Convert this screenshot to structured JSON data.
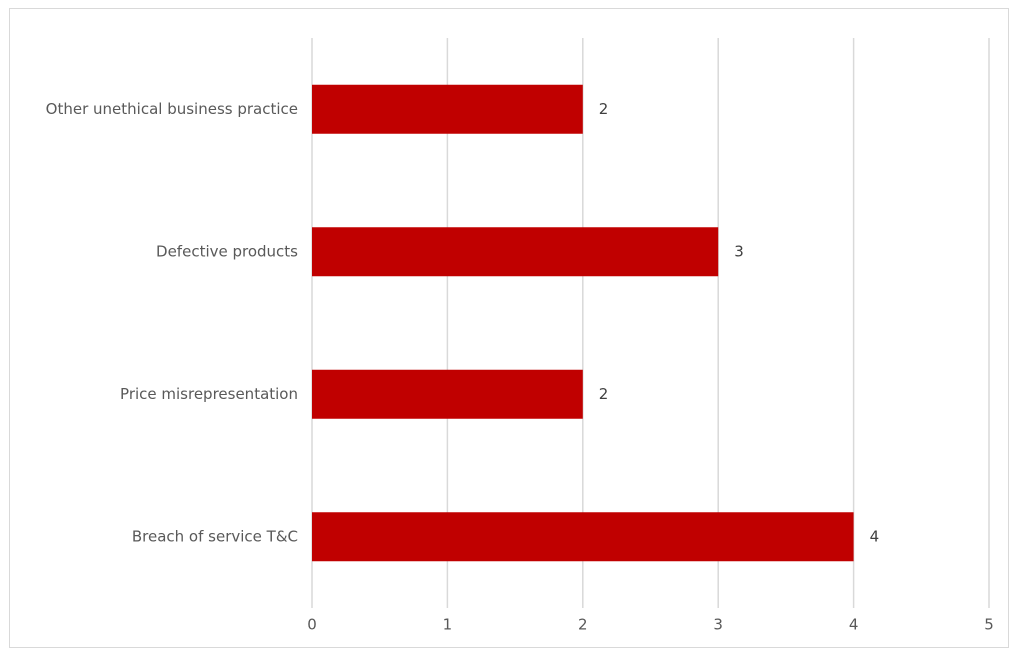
{
  "chart_data": {
    "type": "bar",
    "orientation": "horizontal",
    "categories": [
      "Other unethical business practice",
      "Defective products",
      "Price misrepresentation",
      "Breach of service T&C"
    ],
    "values": [
      2,
      3,
      2,
      4
    ],
    "data_labels": [
      "2",
      "3",
      "2",
      "4"
    ],
    "title": "",
    "xlabel": "",
    "ylabel": "",
    "xlim": [
      0,
      5
    ],
    "x_ticks": [
      "0",
      "1",
      "2",
      "3",
      "4",
      "5"
    ],
    "grid": "vertical",
    "legend": "none",
    "bar_color": "#c00000"
  }
}
